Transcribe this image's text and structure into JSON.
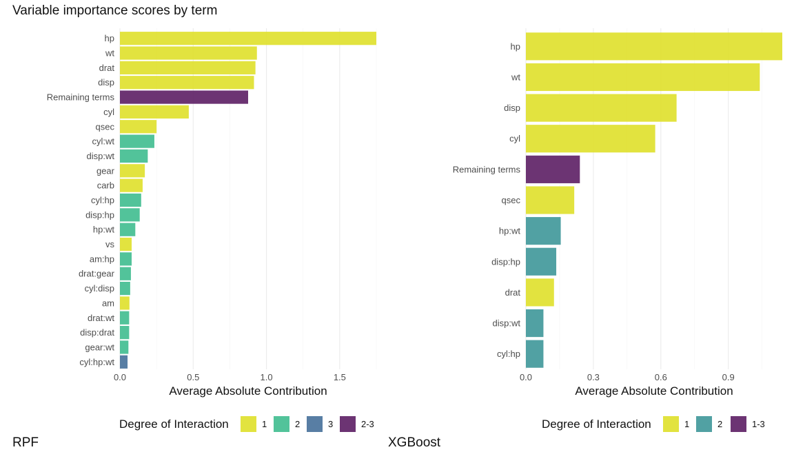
{
  "title": "Variable importance scores by term",
  "colors": {
    "1": "#dfe02a",
    "2": "#3fbd8f",
    "3": "#46709a",
    "2-3": "#5c1e64",
    "xgb_2": "#3e9799",
    "xgb_1-3": "#5c1e64"
  },
  "chart_data": [
    {
      "type": "bar",
      "orientation": "horizontal",
      "caption": "RPF",
      "xlabel": "Average Absolute Contribution",
      "xlim": [
        0,
        1.75
      ],
      "xticks": [
        0.0,
        0.5,
        1.0,
        1.5
      ],
      "xtick_labels": [
        "0.0",
        "0.5",
        "1.0",
        "1.5"
      ],
      "grid": true,
      "legend_title": "Degree of Interaction",
      "legend_position": "bottom",
      "legend": [
        {
          "label": "1",
          "color": "#dfe02a"
        },
        {
          "label": "2",
          "color": "#3fbd8f"
        },
        {
          "label": "3",
          "color": "#46709a"
        },
        {
          "label": "2-3",
          "color": "#5c1e64"
        }
      ],
      "bars": [
        {
          "term": "hp",
          "value": 1.75,
          "degree": "1"
        },
        {
          "term": "wt",
          "value": 0.935,
          "degree": "1"
        },
        {
          "term": "drat",
          "value": 0.925,
          "degree": "1"
        },
        {
          "term": "disp",
          "value": 0.915,
          "degree": "1"
        },
        {
          "term": "Remaining terms",
          "value": 0.875,
          "degree": "2-3"
        },
        {
          "term": "cyl",
          "value": 0.47,
          "degree": "1"
        },
        {
          "term": "qsec",
          "value": 0.25,
          "degree": "1"
        },
        {
          "term": "cyl:wt",
          "value": 0.235,
          "degree": "2"
        },
        {
          "term": "disp:wt",
          "value": 0.19,
          "degree": "2"
        },
        {
          "term": "gear",
          "value": 0.17,
          "degree": "1"
        },
        {
          "term": "carb",
          "value": 0.155,
          "degree": "1"
        },
        {
          "term": "cyl:hp",
          "value": 0.145,
          "degree": "2"
        },
        {
          "term": "disp:hp",
          "value": 0.135,
          "degree": "2"
        },
        {
          "term": "hp:wt",
          "value": 0.105,
          "degree": "2"
        },
        {
          "term": "vs",
          "value": 0.08,
          "degree": "1"
        },
        {
          "term": "am:hp",
          "value": 0.08,
          "degree": "2"
        },
        {
          "term": "drat:gear",
          "value": 0.075,
          "degree": "2"
        },
        {
          "term": "cyl:disp",
          "value": 0.07,
          "degree": "2"
        },
        {
          "term": "am",
          "value": 0.065,
          "degree": "1"
        },
        {
          "term": "drat:wt",
          "value": 0.063,
          "degree": "2"
        },
        {
          "term": "disp:drat",
          "value": 0.063,
          "degree": "2"
        },
        {
          "term": "gear:wt",
          "value": 0.058,
          "degree": "2"
        },
        {
          "term": "cyl:hp:wt",
          "value": 0.052,
          "degree": "3"
        }
      ]
    },
    {
      "type": "bar",
      "orientation": "horizontal",
      "caption": "XGBoost",
      "xlabel": "Average Absolute Contribution",
      "xlim": [
        0,
        1.14
      ],
      "xticks": [
        0.0,
        0.3,
        0.6,
        0.9
      ],
      "xtick_labels": [
        "0.0",
        "0.3",
        "0.6",
        "0.9"
      ],
      "grid": true,
      "legend_title": "Degree of Interaction",
      "legend_position": "bottom",
      "legend": [
        {
          "label": "1",
          "color": "#dfe02a"
        },
        {
          "label": "2",
          "color": "#3e9799"
        },
        {
          "label": "1-3",
          "color": "#5c1e64"
        }
      ],
      "bars": [
        {
          "term": "hp",
          "value": 1.14,
          "degree": "1"
        },
        {
          "term": "wt",
          "value": 1.04,
          "degree": "1"
        },
        {
          "term": "disp",
          "value": 0.67,
          "degree": "1"
        },
        {
          "term": "cyl",
          "value": 0.575,
          "degree": "1"
        },
        {
          "term": "Remaining terms",
          "value": 0.24,
          "degree": "1-3"
        },
        {
          "term": "qsec",
          "value": 0.215,
          "degree": "1"
        },
        {
          "term": "hp:wt",
          "value": 0.155,
          "degree": "2"
        },
        {
          "term": "disp:hp",
          "value": 0.135,
          "degree": "2"
        },
        {
          "term": "drat",
          "value": 0.125,
          "degree": "1"
        },
        {
          "term": "disp:wt",
          "value": 0.078,
          "degree": "2"
        },
        {
          "term": "cyl:hp",
          "value": 0.078,
          "degree": "2"
        }
      ]
    }
  ]
}
